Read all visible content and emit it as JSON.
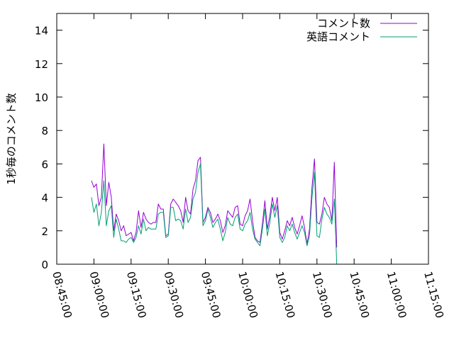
{
  "chart_data": {
    "type": "line",
    "title": "",
    "xlabel": "",
    "ylabel": "1秒毎のコメント数",
    "x_range": [
      "08:45:00",
      "11:15:00"
    ],
    "ylim": [
      0,
      15
    ],
    "x_ticks": [
      "08:45:00",
      "09:00:00",
      "09:15:00",
      "09:30:00",
      "09:45:00",
      "10:00:00",
      "10:15:00",
      "10:30:00",
      "10:45:00",
      "11:00:00",
      "11:15:00"
    ],
    "y_ticks": [
      "0",
      "2",
      "4",
      "6",
      "8",
      "10",
      "12",
      "14"
    ],
    "grid": false,
    "legend_position": "top-right",
    "x_start_time": "08:59:00",
    "x_interval_seconds": 60,
    "series": [
      {
        "name": "コメント数",
        "color": "#9400d3",
        "values": [
          5.0,
          4.6,
          4.8,
          3.5,
          4.0,
          7.2,
          3.5,
          4.9,
          4.0,
          2.0,
          3.0,
          2.6,
          2.0,
          2.3,
          1.7,
          1.8,
          1.9,
          1.4,
          1.9,
          3.2,
          2.2,
          3.1,
          2.7,
          2.5,
          2.4,
          2.5,
          2.5,
          3.6,
          3.3,
          3.3,
          1.7,
          1.8,
          3.6,
          3.9,
          3.7,
          3.5,
          3.2,
          2.5,
          4.0,
          3.2,
          3.0,
          4.5,
          5.0,
          6.2,
          6.4,
          2.5,
          2.8,
          3.4,
          3.1,
          2.5,
          2.7,
          3.0,
          2.6,
          1.9,
          2.3,
          3.2,
          3.0,
          2.8,
          3.4,
          3.5,
          2.4,
          2.3,
          2.9,
          3.2,
          3.9,
          2.6,
          1.6,
          1.4,
          1.3,
          2.4,
          3.8,
          2.1,
          2.9,
          4.0,
          3.2,
          4.0,
          1.9,
          1.5,
          2.0,
          2.6,
          2.3,
          2.8,
          2.2,
          1.8,
          2.3,
          2.9,
          2.2,
          1.2,
          2.1,
          4.6,
          6.3,
          2.5,
          2.4,
          3.0,
          4.0,
          3.6,
          3.4,
          2.6,
          6.1,
          1.0
        ]
      },
      {
        "name": "英語コメント",
        "color": "#009e73",
        "values": [
          4.0,
          3.1,
          3.6,
          2.3,
          3.1,
          5.0,
          2.3,
          3.2,
          3.5,
          1.6,
          2.7,
          2.1,
          1.4,
          1.4,
          1.3,
          1.5,
          1.6,
          1.3,
          1.6,
          2.3,
          1.8,
          2.7,
          2.0,
          2.2,
          2.1,
          2.1,
          2.1,
          3.0,
          3.1,
          3.1,
          1.6,
          1.7,
          3.4,
          3.4,
          2.6,
          2.7,
          2.6,
          2.1,
          3.3,
          2.5,
          2.8,
          3.9,
          4.3,
          5.5,
          6.0,
          2.3,
          2.6,
          3.3,
          2.8,
          2.2,
          2.5,
          2.7,
          2.1,
          1.4,
          1.9,
          2.8,
          2.4,
          2.3,
          2.8,
          3.0,
          2.1,
          2.0,
          2.4,
          2.6,
          3.1,
          2.1,
          1.5,
          1.3,
          1.1,
          2.1,
          3.3,
          1.7,
          2.5,
          3.6,
          2.8,
          3.5,
          1.6,
          1.3,
          1.6,
          2.3,
          2.0,
          2.4,
          1.9,
          1.5,
          1.9,
          2.3,
          1.9,
          1.1,
          1.7,
          4.0,
          5.5,
          1.7,
          1.6,
          2.7,
          3.4,
          3.0,
          2.8,
          2.4,
          3.9,
          0.0
        ]
      }
    ]
  }
}
